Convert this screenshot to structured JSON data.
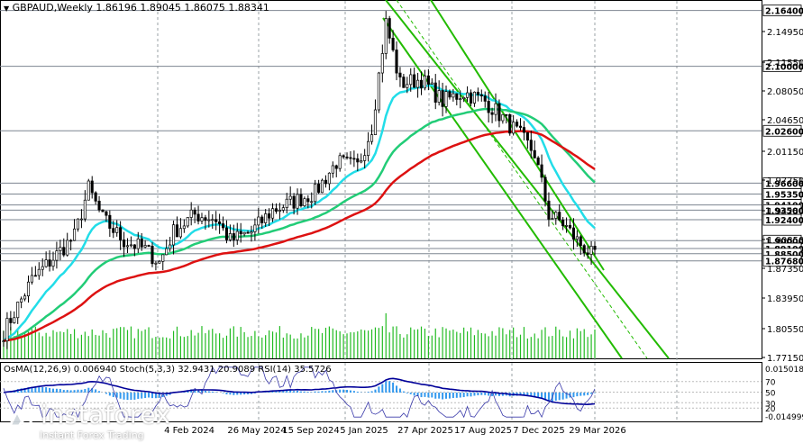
{
  "header": {
    "symbol": "GBPAUD,Weekly",
    "ohlc": "1.86196 1.89045 1.86075 1.88341"
  },
  "price_axis": {
    "ticks": [
      "2.14950",
      "2.11550",
      "2.08050",
      "2.04650",
      "2.01150",
      "1.97750",
      "1.94250",
      "1.90850",
      "1.87350",
      "1.83950",
      "1.80550",
      "1.77150"
    ],
    "level_labels": [
      {
        "text": "2.16400",
        "price": 2.164
      },
      {
        "text": "2.10000",
        "price": 2.1
      },
      {
        "text": "2.02600",
        "price": 2.026
      },
      {
        "text": "1.96600",
        "price": 1.966
      },
      {
        "text": "1.95350",
        "price": 1.9535
      },
      {
        "text": "1.94100",
        "price": 1.941
      },
      {
        "text": "1.93500",
        "price": 1.935
      },
      {
        "text": "1.92400",
        "price": 1.924
      },
      {
        "text": "1.90000",
        "price": 1.9
      },
      {
        "text": "1.89100",
        "price": 1.891
      },
      {
        "text": "1.88500",
        "price": 1.885
      },
      {
        "text": "1.87680",
        "price": 1.8768
      }
    ]
  },
  "time_axis": {
    "labels": [
      "4 Feb 2024",
      "26 May 2024",
      "15 Sep 2024",
      "5 Jan 2025",
      "27 Apr 2025",
      "17 Aug 2025",
      "7 Dec 2025",
      "29 Mar 2026"
    ]
  },
  "indicators": {
    "label": "OsMA(12,26,9) 0.006940  Stoch(5,3,3) 32.9431 20.9089  RSI(14) 35.5726",
    "axis_top": "0.015018",
    "axis_bottom": "-0.014999",
    "levels": [
      "70",
      "50",
      "30",
      "20"
    ]
  },
  "watermark": {
    "brand": "instaforex",
    "tagline": "Instant Forex Trading"
  },
  "colors": {
    "ema_fast": "#22dde8",
    "ema_mid": "#22cc77",
    "ema_slow": "#dd1111",
    "channel": "#22bb00",
    "macd": "#3399ee",
    "signal": "#000099",
    "grid": "#9aa0a6"
  },
  "chart_data": {
    "type": "candlestick",
    "title": "GBPAUD,Weekly",
    "ylim": [
      1.765,
      2.175
    ],
    "key_levels": [
      2.164,
      2.1,
      2.026,
      1.966,
      1.9535,
      1.941,
      1.935,
      1.924,
      1.9,
      1.891,
      1.885,
      1.8768
    ],
    "last_bar": {
      "open": 1.86196,
      "high": 1.89045,
      "low": 1.86075,
      "close": 1.88341
    }
  }
}
